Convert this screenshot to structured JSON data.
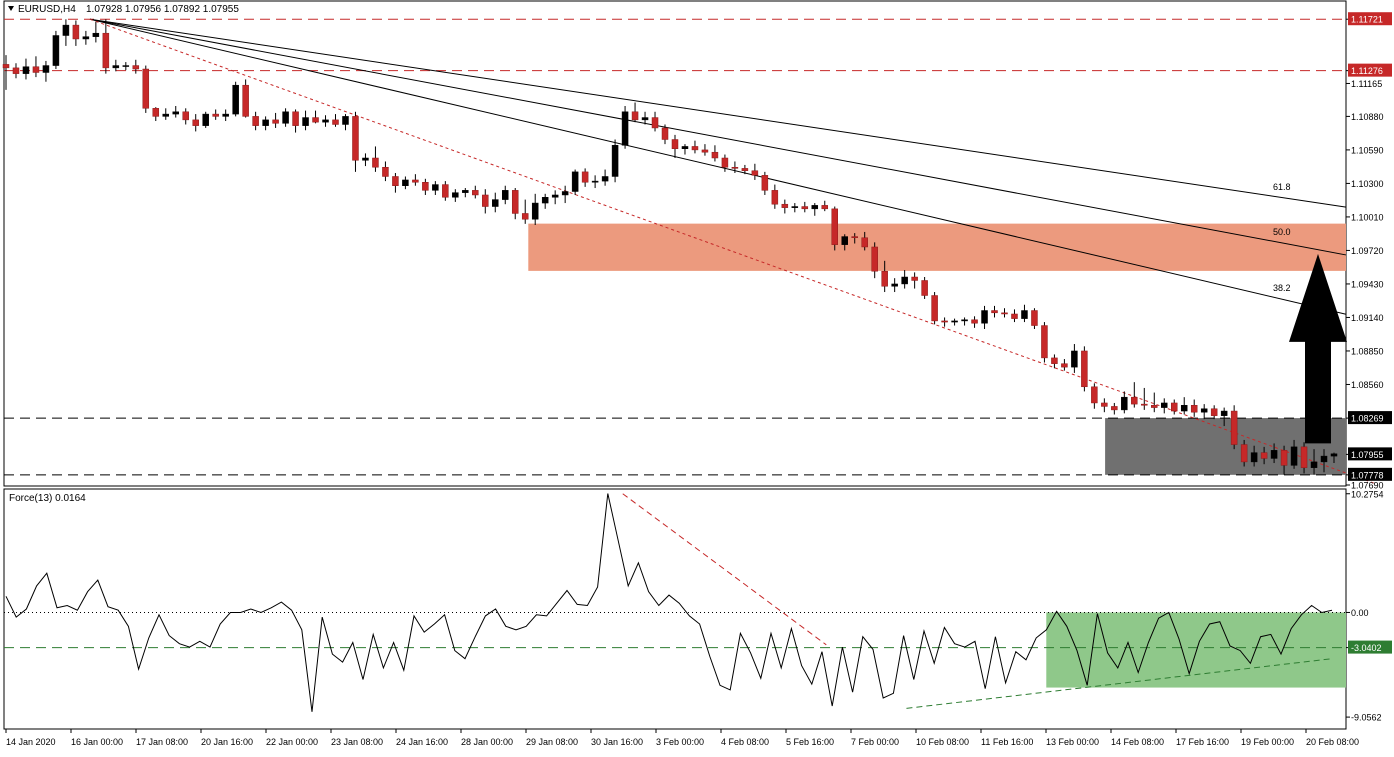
{
  "header": {
    "symbol": "EURUSD,H4",
    "ohlc": "1.07928 1.07956 1.07892 1.07955"
  },
  "chart_data": [
    {
      "type": "candlestick",
      "title": "EURUSD,H4",
      "ylim": [
        1.0769,
        1.1187
      ],
      "y_ticks": [
        1.11721,
        1.11276,
        1.11165,
        1.1088,
        1.1059,
        1.103,
        1.1001,
        1.0972,
        1.0943,
        1.0914,
        1.0885,
        1.0856,
        1.08269,
        1.07955,
        1.07778,
        1.0769
      ],
      "y_tick_labels": [
        "1.11721",
        "1.11276",
        "1.11165",
        "1.10880",
        "1.10590",
        "1.10300",
        "1.10010",
        "1.09720",
        "1.09430",
        "1.09140",
        "1.08850",
        "1.08560",
        "1.08269",
        "1.07955",
        "1.07778",
        "1.07690"
      ],
      "highlighted_levels": [
        {
          "value": 1.11721,
          "label": "1.11721",
          "color": "#c62828"
        },
        {
          "value": 1.11276,
          "label": "1.11276",
          "color": "#c62828"
        },
        {
          "value": 1.08269,
          "label": "1.08269",
          "color": "#000000"
        },
        {
          "value": 1.07955,
          "label": "1.07955",
          "color": "#000000"
        },
        {
          "value": 1.07778,
          "label": "1.07778",
          "color": "#000000"
        }
      ],
      "x_labels": [
        "14 Jan 2020",
        "16 Jan 00:00",
        "17 Jan 08:00",
        "20 Jan 16:00",
        "22 Jan 00:00",
        "23 Jan 08:00",
        "24 Jan 16:00",
        "28 Jan 00:00",
        "29 Jan 08:00",
        "30 Jan 16:00",
        "3 Feb 00:00",
        "4 Feb 08:00",
        "5 Feb 16:00",
        "7 Feb 00:00",
        "10 Feb 08:00",
        "11 Feb 16:00",
        "13 Feb 00:00",
        "14 Feb 08:00",
        "17 Feb 16:00",
        "19 Feb 00:00",
        "20 Feb 08:00"
      ],
      "fib_fan": [
        {
          "label": "38.2",
          "start": [
            0,
            1.11721
          ],
          "end": [
            133,
            1.09168
          ]
        },
        {
          "label": "50.0",
          "start": [
            0,
            1.11721
          ],
          "end": [
            133,
            1.09681
          ]
        },
        {
          "label": "61.8",
          "start": [
            0,
            1.11721
          ],
          "end": [
            133,
            1.10095
          ]
        }
      ],
      "trendline": {
        "start": [
          0,
          1.11721
        ],
        "end": [
          133,
          1.077
        ],
        "color": "#c62828",
        "style": "dotted"
      },
      "zones": [
        {
          "x0": 51,
          "x1": 133,
          "y0": 1.09543,
          "y1": 1.09952,
          "color": "#ec9a7e"
        },
        {
          "x0": 107,
          "x1": 133,
          "y0": 1.07778,
          "y1": 1.08269,
          "color": "#707070"
        }
      ],
      "arrow": {
        "x": 130,
        "y_from": 1.0805,
        "y_to": 1.0969,
        "direction": "up",
        "color": "#000000"
      },
      "candles": [
        [
          1.1133,
          1.1141,
          1.1111,
          1.113
        ],
        [
          1.113,
          1.1134,
          1.1121,
          1.1125
        ],
        [
          1.1125,
          1.1138,
          1.112,
          1.1131
        ],
        [
          1.1131,
          1.114,
          1.1122,
          1.1126
        ],
        [
          1.1126,
          1.1136,
          1.1118,
          1.1132
        ],
        [
          1.1132,
          1.1162,
          1.1129,
          1.1158
        ],
        [
          1.1158,
          1.1172,
          1.1149,
          1.1167
        ],
        [
          1.1167,
          1.1171,
          1.1149,
          1.1155
        ],
        [
          1.1155,
          1.1162,
          1.115,
          1.1157
        ],
        [
          1.1157,
          1.117,
          1.1152,
          1.116
        ],
        [
          1.116,
          1.1172,
          1.1125,
          1.113
        ],
        [
          1.113,
          1.1137,
          1.1127,
          1.1132
        ],
        [
          1.1132,
          1.1135,
          1.1128,
          1.1132
        ],
        [
          1.1132,
          1.1137,
          1.1125,
          1.1129
        ],
        [
          1.1129,
          1.1132,
          1.1091,
          1.1095
        ],
        [
          1.1095,
          1.1096,
          1.1084,
          1.1088
        ],
        [
          1.1088,
          1.1095,
          1.1085,
          1.109
        ],
        [
          1.109,
          1.1097,
          1.1087,
          1.1092
        ],
        [
          1.1092,
          1.1095,
          1.1081,
          1.1085
        ],
        [
          1.1085,
          1.109,
          1.1075,
          1.108
        ],
        [
          1.108,
          1.1092,
          1.1078,
          1.109
        ],
        [
          1.109,
          1.1094,
          1.1085,
          1.1088
        ],
        [
          1.1088,
          1.1094,
          1.1084,
          1.109
        ],
        [
          1.109,
          1.1118,
          1.1088,
          1.1115
        ],
        [
          1.1115,
          1.112,
          1.1087,
          1.1088
        ],
        [
          1.1088,
          1.1092,
          1.1076,
          1.108
        ],
        [
          1.108,
          1.1088,
          1.1076,
          1.1085
        ],
        [
          1.1085,
          1.1091,
          1.1078,
          1.1082
        ],
        [
          1.1082,
          1.1095,
          1.1079,
          1.1092
        ],
        [
          1.1092,
          1.1094,
          1.1074,
          1.108
        ],
        [
          1.108,
          1.1093,
          1.1076,
          1.1087
        ],
        [
          1.1087,
          1.1093,
          1.1082,
          1.1083
        ],
        [
          1.1083,
          1.1089,
          1.1079,
          1.1085
        ],
        [
          1.1085,
          1.109,
          1.1079,
          1.1081
        ],
        [
          1.1081,
          1.109,
          1.1076,
          1.1088
        ],
        [
          1.1088,
          1.1092,
          1.104,
          1.105
        ],
        [
          1.105,
          1.1056,
          1.1045,
          1.1052
        ],
        [
          1.1052,
          1.1062,
          1.104,
          1.1044
        ],
        [
          1.1044,
          1.1049,
          1.1032,
          1.1036
        ],
        [
          1.1036,
          1.1039,
          1.1022,
          1.1028
        ],
        [
          1.1028,
          1.1036,
          1.1025,
          1.1033
        ],
        [
          1.1033,
          1.1038,
          1.1028,
          1.1031
        ],
        [
          1.1031,
          1.1034,
          1.102,
          1.1024
        ],
        [
          1.1024,
          1.1032,
          1.102,
          1.1029
        ],
        [
          1.1029,
          1.1032,
          1.1015,
          1.1018
        ],
        [
          1.1018,
          1.1025,
          1.1014,
          1.1022
        ],
        [
          1.1022,
          1.1026,
          1.1018,
          1.1024
        ],
        [
          1.1024,
          1.1028,
          1.1017,
          1.102
        ],
        [
          1.102,
          1.1025,
          1.1004,
          1.101
        ],
        [
          1.101,
          1.1022,
          1.1005,
          1.1016
        ],
        [
          1.1016,
          1.1028,
          1.1012,
          1.1024
        ],
        [
          1.1024,
          1.1026,
          1.0999,
          1.1004
        ],
        [
          1.1004,
          1.1016,
          1.0995,
          1.0999
        ],
        [
          1.0999,
          1.1021,
          1.0994,
          1.1013
        ],
        [
          1.1013,
          1.1021,
          1.1008,
          1.1018
        ],
        [
          1.1018,
          1.1024,
          1.1012,
          1.102
        ],
        [
          1.102,
          1.1028,
          1.1013,
          1.1023
        ],
        [
          1.1023,
          1.1042,
          1.102,
          1.104
        ],
        [
          1.104,
          1.1043,
          1.1027,
          1.1031
        ],
        [
          1.1031,
          1.1037,
          1.1026,
          1.1032
        ],
        [
          1.1032,
          1.1042,
          1.1028,
          1.1036
        ],
        [
          1.1036,
          1.1068,
          1.1031,
          1.1063
        ],
        [
          1.1063,
          1.1097,
          1.106,
          1.1092
        ],
        [
          1.1092,
          1.11,
          1.1083,
          1.1085
        ],
        [
          1.1085,
          1.1092,
          1.1081,
          1.1087
        ],
        [
          1.1087,
          1.1092,
          1.1075,
          1.1078
        ],
        [
          1.1078,
          1.1081,
          1.1064,
          1.1068
        ],
        [
          1.1068,
          1.1072,
          1.1052,
          1.106
        ],
        [
          1.106,
          1.1064,
          1.1055,
          1.1062
        ],
        [
          1.1062,
          1.1067,
          1.1056,
          1.1059
        ],
        [
          1.1059,
          1.1064,
          1.1054,
          1.1057
        ],
        [
          1.1057,
          1.1063,
          1.1049,
          1.1052
        ],
        [
          1.1052,
          1.1055,
          1.104,
          1.1044
        ],
        [
          1.1044,
          1.1049,
          1.1039,
          1.1043
        ],
        [
          1.1043,
          1.1046,
          1.1038,
          1.1041
        ],
        [
          1.1041,
          1.1047,
          1.1033,
          1.1037
        ],
        [
          1.1037,
          1.104,
          1.102,
          1.1024
        ],
        [
          1.1024,
          1.1029,
          1.1008,
          1.1012
        ],
        [
          1.1012,
          1.1016,
          1.1004,
          1.1009
        ],
        [
          1.1009,
          1.1013,
          1.1005,
          1.101
        ],
        [
          1.101,
          1.1014,
          1.1005,
          1.1008
        ],
        [
          1.1008,
          1.1013,
          1.1002,
          1.1011
        ],
        [
          1.1011,
          1.1015,
          1.1006,
          1.1008
        ],
        [
          1.1008,
          1.101,
          1.0972,
          1.0977
        ],
        [
          1.0977,
          1.0986,
          1.0972,
          1.0984
        ],
        [
          1.0984,
          1.0987,
          1.0978,
          1.0983
        ],
        [
          1.0983,
          1.0988,
          1.0972,
          1.0975
        ],
        [
          1.0975,
          1.0979,
          1.0948,
          1.0954
        ],
        [
          1.0954,
          1.0963,
          1.0936,
          1.0941
        ],
        [
          1.0941,
          1.0948,
          1.0936,
          1.0943
        ],
        [
          1.0943,
          1.0955,
          1.0939,
          1.0949
        ],
        [
          1.0949,
          1.0953,
          1.0939,
          1.0946
        ],
        [
          1.0946,
          1.0949,
          1.093,
          1.0933
        ],
        [
          1.0933,
          1.0936,
          1.0908,
          1.0911
        ],
        [
          1.0911,
          1.0914,
          1.0906,
          1.091
        ],
        [
          1.091,
          1.0913,
          1.0907,
          1.0911
        ],
        [
          1.0911,
          1.0914,
          1.0907,
          1.0912
        ],
        [
          1.0912,
          1.0915,
          1.0905,
          1.0909
        ],
        [
          1.0909,
          1.0924,
          1.0904,
          1.092
        ],
        [
          1.092,
          1.0924,
          1.0914,
          1.0918
        ],
        [
          1.0918,
          1.0922,
          1.0914,
          1.0917
        ],
        [
          1.0917,
          1.0921,
          1.091,
          1.0913
        ],
        [
          1.0913,
          1.0925,
          1.091,
          1.092
        ],
        [
          1.092,
          1.0922,
          1.0904,
          1.0907
        ],
        [
          1.0907,
          1.091,
          1.0875,
          1.0879
        ],
        [
          1.0879,
          1.0882,
          1.087,
          1.0874
        ],
        [
          1.0874,
          1.0878,
          1.0868,
          1.0871
        ],
        [
          1.0871,
          1.0891,
          1.0866,
          1.0885
        ],
        [
          1.0885,
          1.0889,
          1.085,
          1.0854
        ],
        [
          1.0854,
          1.0857,
          1.0835,
          1.084
        ],
        [
          1.084,
          1.0844,
          1.0832,
          1.0837
        ],
        [
          1.0837,
          1.084,
          1.083,
          1.0834
        ],
        [
          1.0834,
          1.085,
          1.0831,
          1.0845
        ],
        [
          1.0845,
          1.0858,
          1.0836,
          1.0839
        ],
        [
          1.0839,
          1.0853,
          1.0834,
          1.0838
        ],
        [
          1.0838,
          1.0849,
          1.0832,
          1.0836
        ],
        [
          1.0836,
          1.0844,
          1.0831,
          1.084
        ],
        [
          1.084,
          1.0843,
          1.083,
          1.0833
        ],
        [
          1.0833,
          1.0845,
          1.083,
          1.0838
        ],
        [
          1.0838,
          1.0843,
          1.0828,
          1.0832
        ],
        [
          1.0832,
          1.0839,
          1.0826,
          1.0835
        ],
        [
          1.0835,
          1.0838,
          1.0826,
          1.0829
        ],
        [
          1.0829,
          1.0836,
          1.082,
          1.0833
        ],
        [
          1.0833,
          1.0838,
          1.08,
          1.0804
        ],
        [
          1.0804,
          1.0808,
          1.0785,
          1.0789
        ],
        [
          1.0789,
          1.0803,
          1.0785,
          1.0797
        ],
        [
          1.0797,
          1.0802,
          1.0787,
          1.0792
        ],
        [
          1.0792,
          1.0805,
          1.0788,
          1.0799
        ],
        [
          1.0799,
          1.0803,
          1.0778,
          1.0786
        ],
        [
          1.0786,
          1.0808,
          1.0783,
          1.0802
        ],
        [
          1.0802,
          1.0806,
          1.0779,
          1.0784
        ],
        [
          1.0784,
          1.08,
          1.0778,
          1.0789
        ],
        [
          1.0789,
          1.08,
          1.078,
          1.0794
        ],
        [
          1.0794,
          1.0797,
          1.0788,
          1.0796
        ]
      ]
    },
    {
      "type": "line",
      "title": "Force(13) 0.0164",
      "ylim": [
        -10.0,
        10.6
      ],
      "y_ticks": [
        10.2754,
        0.0,
        -3.0402,
        -9.0562
      ],
      "y_tick_labels": [
        "10.2754",
        "0.00",
        "-3.0402",
        "-9.0562"
      ],
      "highlighted_levels": [
        {
          "value": -3.0402,
          "label": "-3.0402",
          "color": "#2e7d32"
        }
      ],
      "zero_line": {
        "value": 0.0,
        "color": "#000000",
        "style": "dotted"
      },
      "trendlines": [
        {
          "start": [
            100,
            10.2754
          ],
          "end": [
            133,
            -2.8
          ],
          "color": "#c62828",
          "style": "dashed"
        },
        {
          "start": [
            146,
            -8.3
          ],
          "end": [
            215,
            -4.0
          ],
          "color": "#2e7d32",
          "style": "dashed"
        }
      ],
      "zone": {
        "x0": 169,
        "x1": 215,
        "y0": -6.5,
        "y1": 0.0,
        "color": "#8fc88a"
      },
      "force_x_range": [
        0,
        215
      ],
      "values": [
        1.4,
        -0.4,
        0.3,
        2.3,
        3.4,
        0.4,
        0.6,
        0.2,
        1.8,
        2.8,
        0.5,
        0.2,
        -1.2,
        -4.9,
        -2.2,
        -0.2,
        -2.0,
        -2.7,
        -3.0,
        -2.5,
        -3.0,
        -1.0,
        0.0,
        0.0,
        0.3,
        0.0,
        0.4,
        0.9,
        0.2,
        -1.5,
        -8.6,
        -0.4,
        -3.6,
        -4.3,
        -2.6,
        -5.8,
        -1.9,
        -4.8,
        -2.6,
        -5.0,
        -0.3,
        -1.7,
        -1.0,
        -0.2,
        -3.3,
        -4.0,
        -2.1,
        -0.3,
        0.3,
        -1.2,
        -1.5,
        -1.2,
        -0.2,
        -0.3,
        0.8,
        1.9,
        0.7,
        0.6,
        2.2,
        10.3,
        6.3,
        2.3,
        4.3,
        1.8,
        0.6,
        1.5,
        0.8,
        -0.3,
        -1.0,
        -3.8,
        -6.3,
        -6.7,
        -1.8,
        -3.5,
        -5.7,
        -1.8,
        -4.8,
        -1.4,
        -4.6,
        -6.2,
        -3.4,
        -8.1,
        -3.0,
        -6.9,
        -2.1,
        -3.2,
        -7.4,
        -7.0,
        -2.0,
        -5.8,
        -1.6,
        -4.4,
        -1.3,
        -2.7,
        -3.0,
        -2.5,
        -6.6,
        -2.1,
        -6.1,
        -3.4,
        -4.1,
        -2.2,
        -1.5,
        0.1,
        -1.2,
        -3.3,
        -6.3,
        -0.1,
        -3.5,
        -4.8,
        -2.6,
        -5.2,
        -2.6,
        -0.5,
        0.0,
        -2.3,
        -5.3,
        -2.5,
        -1.0,
        -0.8,
        -2.9,
        -3.3,
        -4.4,
        -2.1,
        -1.9,
        -3.6,
        -1.4,
        -0.2,
        0.6,
        0.0,
        0.2
      ]
    }
  ]
}
